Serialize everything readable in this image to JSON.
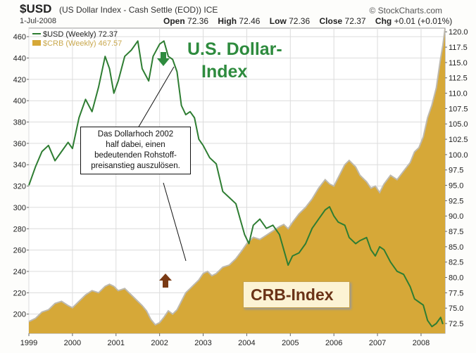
{
  "header": {
    "symbol": "$USD",
    "description": "(US Dollar Index - Cash Settle (EOD)) ICE",
    "brand": "© StockCharts.com",
    "date": "1-Jul-2008",
    "open_label": "Open",
    "open_value": "72.36",
    "high_label": "High",
    "high_value": "72.46",
    "low_label": "Low",
    "low_value": "72.36",
    "close_label": "Close",
    "close_value": "72.37",
    "chg_label": "Chg",
    "chg_value": "+0.01 (+0.01%)"
  },
  "legend": {
    "usd": "$USD (Weekly) 72.37",
    "crb": "$CRB (Weekly) 467.57"
  },
  "annotations": {
    "usd_title_line1": "U.S. Dollar-",
    "usd_title_line2": "Index",
    "crb_title": "CRB-Index",
    "callout_lines": [
      "Das Dollarhoch 2002",
      "half dabei, einen",
      "bedeutenden Rohstoff-",
      "preisanstieg auszulösen."
    ]
  },
  "colors": {
    "usd_line": "#2e7d32",
    "crb_fill": "#d6a838",
    "crb_edge": "#bdb9ae",
    "arrow_down": "#2e8b3e",
    "arrow_up": "#7a3a14"
  },
  "chart_data": {
    "type": "line",
    "x_axis": {
      "ticks": [
        "1999",
        "2000",
        "2001",
        "2002",
        "2003",
        "2004",
        "2005",
        "2006",
        "2007",
        "2008"
      ],
      "range": [
        1999.0,
        2008.55
      ]
    },
    "y_left": {
      "ticks": [
        200,
        220,
        240,
        260,
        280,
        300,
        320,
        340,
        360,
        380,
        400,
        420,
        440,
        460
      ],
      "range": [
        182,
        468
      ],
      "label": ""
    },
    "y_right": {
      "ticks": [
        "72.5",
        "75.0",
        "77.5",
        "80.0",
        "82.5",
        "85.0",
        "87.5",
        "90.0",
        "92.5",
        "95.0",
        "97.5",
        "100.0",
        "102.5",
        "105.0",
        "107.5",
        "110.0",
        "112.5",
        "115.0",
        "117.5",
        "120.0"
      ],
      "range": [
        70.9,
        120.6
      ]
    },
    "series": [
      {
        "name": "$USD (Weekly) 72.37",
        "axis": "right",
        "points": [
          [
            1999.0,
            95.0
          ],
          [
            1999.15,
            98.0
          ],
          [
            1999.3,
            100.5
          ],
          [
            1999.45,
            101.5
          ],
          [
            1999.6,
            99.0
          ],
          [
            1999.75,
            100.5
          ],
          [
            1999.9,
            102.0
          ],
          [
            2000.0,
            101.0
          ],
          [
            2000.15,
            106.0
          ],
          [
            2000.3,
            109.0
          ],
          [
            2000.45,
            107.0
          ],
          [
            2000.6,
            111.0
          ],
          [
            2000.75,
            116.0
          ],
          [
            2000.85,
            114.0
          ],
          [
            2000.95,
            110.0
          ],
          [
            2001.05,
            112.0
          ],
          [
            2001.2,
            116.0
          ],
          [
            2001.35,
            117.0
          ],
          [
            2001.5,
            118.5
          ],
          [
            2001.6,
            114.0
          ],
          [
            2001.75,
            112.0
          ],
          [
            2001.85,
            116.0
          ],
          [
            2002.0,
            118.0
          ],
          [
            2002.1,
            118.5
          ],
          [
            2002.2,
            116.0
          ],
          [
            2002.3,
            115.5
          ],
          [
            2002.4,
            113.5
          ],
          [
            2002.5,
            108.0
          ],
          [
            2002.6,
            106.5
          ],
          [
            2002.7,
            107.0
          ],
          [
            2002.8,
            106.0
          ],
          [
            2002.9,
            102.5
          ],
          [
            2003.0,
            101.5
          ],
          [
            2003.15,
            99.5
          ],
          [
            2003.3,
            98.5
          ],
          [
            2003.45,
            94.0
          ],
          [
            2003.6,
            93.0
          ],
          [
            2003.75,
            92.0
          ],
          [
            2003.85,
            89.5
          ],
          [
            2003.95,
            87.0
          ],
          [
            2004.05,
            85.5
          ],
          [
            2004.15,
            88.5
          ],
          [
            2004.3,
            89.5
          ],
          [
            2004.45,
            88.0
          ],
          [
            2004.6,
            88.5
          ],
          [
            2004.75,
            87.0
          ],
          [
            2004.85,
            84.5
          ],
          [
            2004.95,
            82.0
          ],
          [
            2005.05,
            83.5
          ],
          [
            2005.2,
            84.0
          ],
          [
            2005.35,
            85.5
          ],
          [
            2005.5,
            88.0
          ],
          [
            2005.65,
            89.5
          ],
          [
            2005.8,
            91.0
          ],
          [
            2005.9,
            91.5
          ],
          [
            2006.0,
            90.0
          ],
          [
            2006.1,
            89.0
          ],
          [
            2006.25,
            88.5
          ],
          [
            2006.35,
            86.5
          ],
          [
            2006.5,
            85.5
          ],
          [
            2006.6,
            86.0
          ],
          [
            2006.75,
            86.5
          ],
          [
            2006.85,
            84.5
          ],
          [
            2006.95,
            83.5
          ],
          [
            2007.05,
            85.0
          ],
          [
            2007.15,
            84.5
          ],
          [
            2007.3,
            82.5
          ],
          [
            2007.45,
            81.0
          ],
          [
            2007.6,
            80.5
          ],
          [
            2007.75,
            78.5
          ],
          [
            2007.85,
            76.5
          ],
          [
            2007.95,
            76.0
          ],
          [
            2008.05,
            75.5
          ],
          [
            2008.15,
            73.0
          ],
          [
            2008.25,
            72.0
          ],
          [
            2008.35,
            72.5
          ],
          [
            2008.45,
            73.5
          ],
          [
            2008.5,
            72.4
          ]
        ]
      },
      {
        "name": "$CRB (Weekly) 467.57",
        "axis": "left",
        "points": [
          [
            1999.0,
            193
          ],
          [
            1999.15,
            196
          ],
          [
            1999.3,
            202
          ],
          [
            1999.45,
            204
          ],
          [
            1999.6,
            210
          ],
          [
            1999.75,
            212
          ],
          [
            1999.9,
            208
          ],
          [
            2000.0,
            206
          ],
          [
            2000.15,
            212
          ],
          [
            2000.3,
            218
          ],
          [
            2000.45,
            222
          ],
          [
            2000.6,
            220
          ],
          [
            2000.75,
            226
          ],
          [
            2000.85,
            228
          ],
          [
            2000.95,
            226
          ],
          [
            2001.05,
            222
          ],
          [
            2001.2,
            224
          ],
          [
            2001.35,
            218
          ],
          [
            2001.5,
            212
          ],
          [
            2001.6,
            208
          ],
          [
            2001.7,
            203
          ],
          [
            2001.8,
            195
          ],
          [
            2001.9,
            190
          ],
          [
            2002.0,
            192
          ],
          [
            2002.1,
            197
          ],
          [
            2002.2,
            203
          ],
          [
            2002.3,
            200
          ],
          [
            2002.4,
            204
          ],
          [
            2002.5,
            212
          ],
          [
            2002.6,
            220
          ],
          [
            2002.7,
            224
          ],
          [
            2002.8,
            228
          ],
          [
            2002.9,
            232
          ],
          [
            2003.0,
            238
          ],
          [
            2003.1,
            240
          ],
          [
            2003.2,
            236
          ],
          [
            2003.3,
            238
          ],
          [
            2003.45,
            244
          ],
          [
            2003.6,
            246
          ],
          [
            2003.75,
            252
          ],
          [
            2003.9,
            260
          ],
          [
            2004.0,
            266
          ],
          [
            2004.15,
            272
          ],
          [
            2004.3,
            270
          ],
          [
            2004.45,
            274
          ],
          [
            2004.6,
            278
          ],
          [
            2004.75,
            282
          ],
          [
            2004.85,
            284
          ],
          [
            2004.95,
            280
          ],
          [
            2005.05,
            286
          ],
          [
            2005.2,
            294
          ],
          [
            2005.35,
            300
          ],
          [
            2005.5,
            308
          ],
          [
            2005.65,
            318
          ],
          [
            2005.8,
            326
          ],
          [
            2005.9,
            322
          ],
          [
            2006.0,
            320
          ],
          [
            2006.1,
            328
          ],
          [
            2006.25,
            340
          ],
          [
            2006.35,
            344
          ],
          [
            2006.5,
            338
          ],
          [
            2006.6,
            330
          ],
          [
            2006.75,
            324
          ],
          [
            2006.85,
            318
          ],
          [
            2006.95,
            320
          ],
          [
            2007.05,
            314
          ],
          [
            2007.15,
            322
          ],
          [
            2007.3,
            330
          ],
          [
            2007.45,
            326
          ],
          [
            2007.6,
            334
          ],
          [
            2007.75,
            342
          ],
          [
            2007.85,
            352
          ],
          [
            2007.95,
            356
          ],
          [
            2008.05,
            366
          ],
          [
            2008.15,
            384
          ],
          [
            2008.25,
            396
          ],
          [
            2008.35,
            412
          ],
          [
            2008.45,
            440
          ],
          [
            2008.5,
            452
          ],
          [
            2008.55,
            467.57
          ]
        ]
      }
    ],
    "grid": true
  }
}
